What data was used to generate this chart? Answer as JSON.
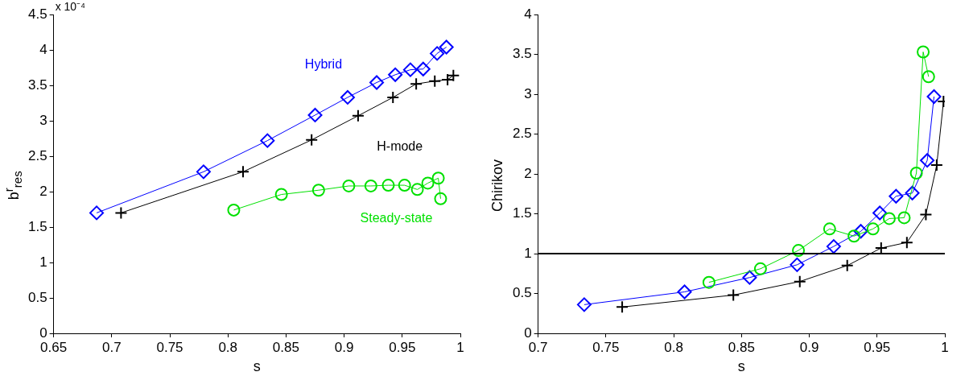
{
  "chart_data": [
    {
      "type": "line",
      "xlabel": "s",
      "ylabel": "b$^{r}$$_{res}$",
      "xlim": [
        0.65,
        1
      ],
      "xticks": [
        0.65,
        0.7,
        0.75,
        0.8,
        0.85,
        0.9,
        0.95,
        1
      ],
      "ylim": [
        0,
        4.5
      ],
      "yticks": [
        0,
        0.5,
        1,
        1.5,
        2,
        2.5,
        3,
        3.5,
        4,
        4.5
      ],
      "grid": false,
      "legend": false,
      "annotations": [
        "x 10⁻⁴"
      ],
      "series": [
        {
          "name": "Hybrid",
          "color": "#0000ff",
          "marker": "diamond",
          "x": [
            0.687,
            0.779,
            0.834,
            0.875,
            0.903,
            0.928,
            0.944,
            0.957,
            0.968,
            0.98,
            0.988
          ],
          "values": [
            1.7,
            2.28,
            2.72,
            3.08,
            3.33,
            3.54,
            3.65,
            3.72,
            3.73,
            3.95,
            4.04
          ]
        },
        {
          "name": "H-mode",
          "color": "#000000",
          "marker": "cross",
          "x": [
            0.708,
            0.813,
            0.872,
            0.912,
            0.942,
            0.962,
            0.978,
            0.989,
            0.994
          ],
          "values": [
            1.7,
            2.28,
            2.73,
            3.07,
            3.33,
            3.52,
            3.56,
            3.58,
            3.64
          ]
        },
        {
          "name": "Steady-state",
          "color": "#00e000",
          "marker": "circle",
          "x": [
            0.805,
            0.846,
            0.878,
            0.904,
            0.923,
            0.938,
            0.952,
            0.963,
            0.972,
            0.981,
            0.983
          ],
          "values": [
            1.74,
            1.96,
            2.02,
            2.08,
            2.08,
            2.09,
            2.09,
            2.03,
            2.12,
            2.19,
            1.9
          ]
        }
      ]
    },
    {
      "type": "line",
      "xlabel": "s",
      "ylabel": "Chirikov",
      "xlim": [
        0.7,
        1
      ],
      "xticks": [
        0.7,
        0.75,
        0.8,
        0.85,
        0.9,
        0.95,
        1
      ],
      "ylim": [
        0,
        4
      ],
      "yticks": [
        0,
        0.5,
        1,
        1.5,
        2,
        2.5,
        3,
        3.5,
        4
      ],
      "grid": false,
      "legend": false,
      "ref_lines": [
        {
          "axis": "y",
          "value": 1,
          "color": "#000000"
        }
      ],
      "series": [
        {
          "color": "#00e000",
          "marker": "circle",
          "x": [
            0.826,
            0.864,
            0.892,
            0.915,
            0.933,
            0.947,
            0.959,
            0.97,
            0.979,
            0.984,
            0.988
          ],
          "values": [
            0.64,
            0.81,
            1.04,
            1.31,
            1.22,
            1.31,
            1.44,
            1.45,
            2.01,
            3.53,
            3.22
          ]
        },
        {
          "color": "#0000ff",
          "marker": "diamond",
          "x": [
            0.734,
            0.808,
            0.856,
            0.891,
            0.918,
            0.938,
            0.952,
            0.964,
            0.976,
            0.987,
            0.992
          ],
          "values": [
            0.36,
            0.52,
            0.7,
            0.86,
            1.09,
            1.28,
            1.51,
            1.72,
            1.76,
            2.17,
            2.97
          ]
        },
        {
          "color": "#000000",
          "marker": "cross",
          "x": [
            0.762,
            0.844,
            0.893,
            0.928,
            0.953,
            0.972,
            0.986,
            0.994,
            0.999
          ],
          "values": [
            0.33,
            0.48,
            0.65,
            0.85,
            1.07,
            1.14,
            1.49,
            2.11,
            2.91
          ]
        }
      ]
    }
  ]
}
